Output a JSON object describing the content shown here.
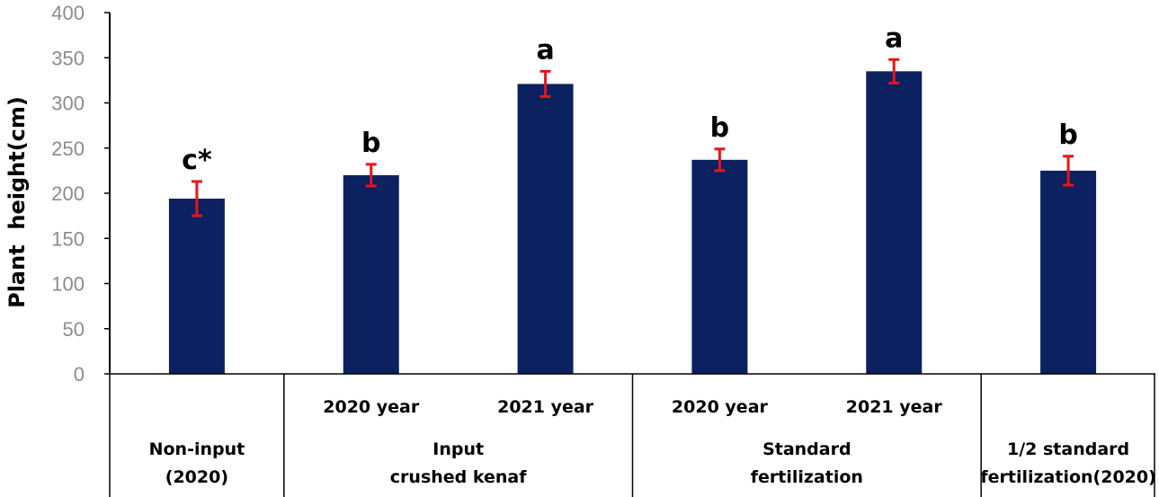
{
  "chart_data": {
    "type": "bar",
    "ylabel": "Plant  height(cm)",
    "ylim": [
      0,
      400
    ],
    "yticks": [
      "0",
      "50",
      "100",
      "150",
      "200",
      "250",
      "300",
      "350",
      "400"
    ],
    "grid": false,
    "bar_color": "#0b2160",
    "errorbar_color": "#e8141b",
    "bars": [
      {
        "value": 194,
        "error": 19,
        "label": "c*"
      },
      {
        "value": 220,
        "error": 12,
        "label": "b"
      },
      {
        "value": 321,
        "error": 14,
        "label": "a"
      },
      {
        "value": 237,
        "error": 12,
        "label": "b"
      },
      {
        "value": 335,
        "error": 13,
        "label": "a"
      },
      {
        "value": 225,
        "error": 16,
        "label": "b"
      }
    ],
    "year_labels": [
      "",
      "2020 year",
      "2021 year",
      "2020 year",
      "2021 year",
      ""
    ],
    "groups": [
      {
        "lines": [
          "Non-input",
          "(2020)"
        ],
        "bar_start": 0,
        "bar_count": 1
      },
      {
        "lines": [
          "Input",
          "crushed kenaf"
        ],
        "bar_start": 1,
        "bar_count": 2
      },
      {
        "lines": [
          "Standard",
          "fertilization"
        ],
        "bar_start": 3,
        "bar_count": 2
      },
      {
        "lines": [
          "1/2 standard",
          "fertilization(2020)"
        ],
        "bar_start": 5,
        "bar_count": 1
      }
    ]
  }
}
